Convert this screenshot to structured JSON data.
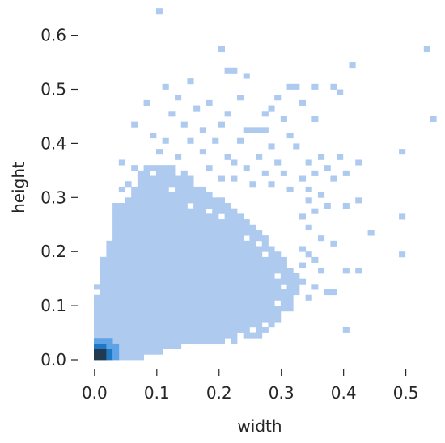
{
  "chart_data": {
    "type": "heatmap",
    "subtype": "2d-histogram",
    "title": "",
    "xlabel": "width",
    "ylabel": "height",
    "xlim": [
      0.0,
      0.54
    ],
    "ylim": [
      0.0,
      0.65
    ],
    "xticks": [
      "0.0",
      "0.1",
      "0.2",
      "0.3",
      "0.4",
      "0.5"
    ],
    "yticks": [
      "0.0",
      "0.1",
      "0.2",
      "0.3",
      "0.4",
      "0.5",
      "0.6"
    ],
    "bin_width": 0.01,
    "grid": false,
    "colors": {
      "low": "#aecbef",
      "mid": "#5fa3e6",
      "high": "#1f78c4",
      "peak": "#213a52"
    },
    "dense_region": {
      "description_bins": "rows of x-bin ranges per y-bin",
      "rows": [
        {
          "y": 0.0,
          "x": [
            0.0,
            0.07
          ]
        },
        {
          "y": 0.01,
          "x": [
            0.0,
            0.1
          ]
        },
        {
          "y": 0.02,
          "x": [
            0.0,
            0.13
          ]
        },
        {
          "y": 0.03,
          "x": [
            0.0,
            0.22
          ]
        },
        {
          "y": 0.04,
          "x": [
            0.0,
            0.26
          ]
        },
        {
          "y": 0.05,
          "x": [
            0.0,
            0.27
          ]
        },
        {
          "y": 0.06,
          "x": [
            0.0,
            0.28
          ]
        },
        {
          "y": 0.07,
          "x": [
            0.0,
            0.29
          ]
        },
        {
          "y": 0.08,
          "x": [
            0.0,
            0.3
          ]
        },
        {
          "y": 0.09,
          "x": [
            0.0,
            0.31
          ]
        },
        {
          "y": 0.1,
          "x": [
            0.0,
            0.31
          ]
        },
        {
          "y": 0.11,
          "x": [
            0.0,
            0.31
          ]
        },
        {
          "y": 0.12,
          "x": [
            0.01,
            0.32
          ]
        },
        {
          "y": 0.13,
          "x": [
            0.01,
            0.32
          ]
        },
        {
          "y": 0.14,
          "x": [
            0.01,
            0.32
          ]
        },
        {
          "y": 0.15,
          "x": [
            0.01,
            0.32
          ]
        },
        {
          "y": 0.16,
          "x": [
            0.01,
            0.31
          ]
        },
        {
          "y": 0.17,
          "x": [
            0.01,
            0.3
          ]
        },
        {
          "y": 0.18,
          "x": [
            0.01,
            0.3
          ]
        },
        {
          "y": 0.19,
          "x": [
            0.02,
            0.29
          ]
        },
        {
          "y": 0.2,
          "x": [
            0.02,
            0.28
          ]
        },
        {
          "y": 0.21,
          "x": [
            0.02,
            0.27
          ]
        },
        {
          "y": 0.22,
          "x": [
            0.03,
            0.27
          ]
        },
        {
          "y": 0.23,
          "x": [
            0.03,
            0.26
          ]
        },
        {
          "y": 0.24,
          "x": [
            0.03,
            0.25
          ]
        },
        {
          "y": 0.25,
          "x": [
            0.03,
            0.24
          ]
        },
        {
          "y": 0.26,
          "x": [
            0.03,
            0.23
          ]
        },
        {
          "y": 0.27,
          "x": [
            0.03,
            0.22
          ]
        },
        {
          "y": 0.28,
          "x": [
            0.03,
            0.21
          ]
        },
        {
          "y": 0.29,
          "x": [
            0.05,
            0.2
          ]
        },
        {
          "y": 0.3,
          "x": [
            0.06,
            0.19
          ]
        },
        {
          "y": 0.31,
          "x": [
            0.06,
            0.17
          ]
        },
        {
          "y": 0.32,
          "x": [
            0.07,
            0.16
          ]
        },
        {
          "y": 0.33,
          "x": [
            0.07,
            0.15
          ]
        },
        {
          "y": 0.34,
          "x": [
            0.07,
            0.14
          ]
        },
        {
          "y": 0.35,
          "x": [
            0.08,
            0.12
          ]
        }
      ]
    },
    "core_cells": [
      {
        "x": 0.0,
        "y": 0.0,
        "level": 3
      },
      {
        "x": 0.01,
        "y": 0.0,
        "level": 3
      },
      {
        "x": 0.0,
        "y": 0.01,
        "level": 3
      },
      {
        "x": 0.01,
        "y": 0.01,
        "level": 3
      },
      {
        "x": 0.02,
        "y": 0.01,
        "level": 2
      },
      {
        "x": 0.01,
        "y": 0.02,
        "level": 2
      },
      {
        "x": 0.0,
        "y": 0.02,
        "level": 2
      },
      {
        "x": 0.02,
        "y": 0.0,
        "level": 2
      },
      {
        "x": 0.02,
        "y": 0.02,
        "level": 1
      },
      {
        "x": 0.03,
        "y": 0.01,
        "level": 1
      },
      {
        "x": 0.01,
        "y": 0.03,
        "level": 1
      },
      {
        "x": 0.0,
        "y": 0.03,
        "level": 1
      },
      {
        "x": 0.03,
        "y": 0.0,
        "level": 1
      },
      {
        "x": 0.03,
        "y": 0.02,
        "level": 1
      },
      {
        "x": 0.02,
        "y": 0.03,
        "level": 1
      }
    ],
    "sparse_cells": [
      {
        "x": 0.1,
        "y": 0.64
      },
      {
        "x": 0.2,
        "y": 0.57
      },
      {
        "x": 0.53,
        "y": 0.57
      },
      {
        "x": 0.41,
        "y": 0.54
      },
      {
        "x": 0.21,
        "y": 0.53
      },
      {
        "x": 0.22,
        "y": 0.53
      },
      {
        "x": 0.24,
        "y": 0.52
      },
      {
        "x": 0.11,
        "y": 0.5
      },
      {
        "x": 0.15,
        "y": 0.51
      },
      {
        "x": 0.31,
        "y": 0.5
      },
      {
        "x": 0.32,
        "y": 0.5
      },
      {
        "x": 0.35,
        "y": 0.5
      },
      {
        "x": 0.38,
        "y": 0.5
      },
      {
        "x": 0.39,
        "y": 0.49
      },
      {
        "x": 0.08,
        "y": 0.47
      },
      {
        "x": 0.13,
        "y": 0.48
      },
      {
        "x": 0.18,
        "y": 0.47
      },
      {
        "x": 0.23,
        "y": 0.48
      },
      {
        "x": 0.29,
        "y": 0.48
      },
      {
        "x": 0.33,
        "y": 0.47
      },
      {
        "x": 0.12,
        "y": 0.45
      },
      {
        "x": 0.16,
        "y": 0.46
      },
      {
        "x": 0.21,
        "y": 0.45
      },
      {
        "x": 0.27,
        "y": 0.45
      },
      {
        "x": 0.28,
        "y": 0.46
      },
      {
        "x": 0.3,
        "y": 0.44
      },
      {
        "x": 0.35,
        "y": 0.44
      },
      {
        "x": 0.54,
        "y": 0.44
      },
      {
        "x": 0.06,
        "y": 0.43
      },
      {
        "x": 0.14,
        "y": 0.43
      },
      {
        "x": 0.17,
        "y": 0.42
      },
      {
        "x": 0.2,
        "y": 0.43
      },
      {
        "x": 0.24,
        "y": 0.42
      },
      {
        "x": 0.25,
        "y": 0.42
      },
      {
        "x": 0.26,
        "y": 0.42
      },
      {
        "x": 0.27,
        "y": 0.42
      },
      {
        "x": 0.31,
        "y": 0.41
      },
      {
        "x": 0.09,
        "y": 0.41
      },
      {
        "x": 0.11,
        "y": 0.4
      },
      {
        "x": 0.15,
        "y": 0.4
      },
      {
        "x": 0.19,
        "y": 0.4
      },
      {
        "x": 0.23,
        "y": 0.4
      },
      {
        "x": 0.28,
        "y": 0.39
      },
      {
        "x": 0.32,
        "y": 0.39
      },
      {
        "x": 0.49,
        "y": 0.38
      },
      {
        "x": 0.1,
        "y": 0.38
      },
      {
        "x": 0.13,
        "y": 0.37
      },
      {
        "x": 0.17,
        "y": 0.38
      },
      {
        "x": 0.21,
        "y": 0.37
      },
      {
        "x": 0.22,
        "y": 0.36
      },
      {
        "x": 0.26,
        "y": 0.37
      },
      {
        "x": 0.29,
        "y": 0.36
      },
      {
        "x": 0.34,
        "y": 0.36
      },
      {
        "x": 0.36,
        "y": 0.37
      },
      {
        "x": 0.39,
        "y": 0.37
      },
      {
        "x": 0.42,
        "y": 0.36
      },
      {
        "x": 0.04,
        "y": 0.36
      },
      {
        "x": 0.06,
        "y": 0.35
      },
      {
        "x": 0.18,
        "y": 0.35
      },
      {
        "x": 0.24,
        "y": 0.35
      },
      {
        "x": 0.27,
        "y": 0.34
      },
      {
        "x": 0.3,
        "y": 0.34
      },
      {
        "x": 0.33,
        "y": 0.33
      },
      {
        "x": 0.35,
        "y": 0.34
      },
      {
        "x": 0.37,
        "y": 0.35
      },
      {
        "x": 0.38,
        "y": 0.33
      },
      {
        "x": 0.4,
        "y": 0.34
      },
      {
        "x": 0.2,
        "y": 0.33
      },
      {
        "x": 0.22,
        "y": 0.33
      },
      {
        "x": 0.25,
        "y": 0.32
      },
      {
        "x": 0.28,
        "y": 0.32
      },
      {
        "x": 0.31,
        "y": 0.31
      },
      {
        "x": 0.34,
        "y": 0.31
      },
      {
        "x": 0.36,
        "y": 0.3
      },
      {
        "x": 0.04,
        "y": 0.31
      },
      {
        "x": 0.05,
        "y": 0.32
      },
      {
        "x": 0.34,
        "y": 0.29
      },
      {
        "x": 0.37,
        "y": 0.28
      },
      {
        "x": 0.35,
        "y": 0.27
      },
      {
        "x": 0.33,
        "y": 0.26
      },
      {
        "x": 0.4,
        "y": 0.28
      },
      {
        "x": 0.42,
        "y": 0.29
      },
      {
        "x": 0.49,
        "y": 0.26
      },
      {
        "x": 0.44,
        "y": 0.23
      },
      {
        "x": 0.34,
        "y": 0.24
      },
      {
        "x": 0.36,
        "y": 0.22
      },
      {
        "x": 0.38,
        "y": 0.21
      },
      {
        "x": 0.49,
        "y": 0.19
      },
      {
        "x": 0.33,
        "y": 0.2
      },
      {
        "x": 0.34,
        "y": 0.19
      },
      {
        "x": 0.35,
        "y": 0.18
      },
      {
        "x": 0.33,
        "y": 0.17
      },
      {
        "x": 0.36,
        "y": 0.16
      },
      {
        "x": 0.4,
        "y": 0.16
      },
      {
        "x": 0.42,
        "y": 0.16
      },
      {
        "x": 0.33,
        "y": 0.14
      },
      {
        "x": 0.35,
        "y": 0.13
      },
      {
        "x": 0.37,
        "y": 0.12
      },
      {
        "x": 0.38,
        "y": 0.12
      },
      {
        "x": 0.34,
        "y": 0.11
      },
      {
        "x": 0.4,
        "y": 0.05
      },
      {
        "x": 0.01,
        "y": 0.18
      },
      {
        "x": 0.01,
        "y": 0.09
      },
      {
        "x": 0.0,
        "y": 0.13
      }
    ],
    "holes": [
      {
        "x": 0.15,
        "y": 0.28
      },
      {
        "x": 0.18,
        "y": 0.27
      },
      {
        "x": 0.2,
        "y": 0.26
      },
      {
        "x": 0.22,
        "y": 0.28
      },
      {
        "x": 0.19,
        "y": 0.3
      },
      {
        "x": 0.12,
        "y": 0.31
      },
      {
        "x": 0.16,
        "y": 0.32
      },
      {
        "x": 0.09,
        "y": 0.34
      },
      {
        "x": 0.13,
        "y": 0.34
      },
      {
        "x": 0.24,
        "y": 0.22
      },
      {
        "x": 0.26,
        "y": 0.21
      },
      {
        "x": 0.27,
        "y": 0.19
      },
      {
        "x": 0.29,
        "y": 0.15
      },
      {
        "x": 0.3,
        "y": 0.13
      },
      {
        "x": 0.29,
        "y": 0.1
      },
      {
        "x": 0.3,
        "y": 0.08
      },
      {
        "x": 0.27,
        "y": 0.06
      },
      {
        "x": 0.25,
        "y": 0.05
      },
      {
        "x": 0.28,
        "y": 0.04
      },
      {
        "x": 0.24,
        "y": 0.03
      },
      {
        "x": 0.21,
        "y": 0.03
      },
      {
        "x": 0.23,
        "y": 0.04
      },
      {
        "x": 0.02,
        "y": 0.29
      },
      {
        "x": 0.02,
        "y": 0.27
      },
      {
        "x": 0.31,
        "y": 0.2
      },
      {
        "x": 0.3,
        "y": 0.23
      }
    ]
  }
}
